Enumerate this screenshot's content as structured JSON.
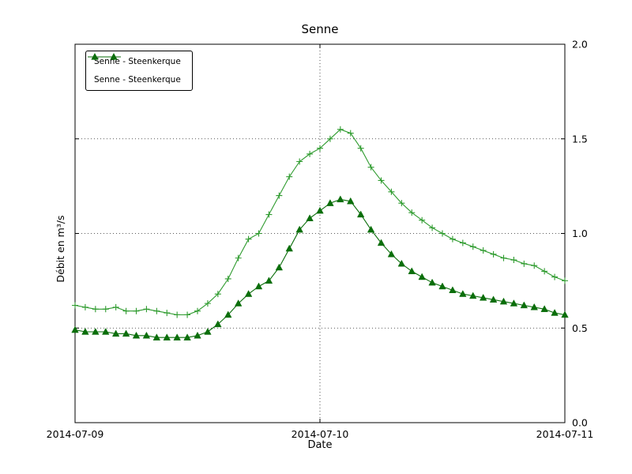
{
  "figure": {
    "background": "#ffffff"
  },
  "chart_data": {
    "type": "line",
    "title": "Senne",
    "xlabel": "Date",
    "ylabel": "Débit en m³/s",
    "grid": "dotted",
    "legend_position": "upper-left",
    "ylim": [
      0.0,
      2.0
    ],
    "y_ticks": [
      0.0,
      0.5,
      1.0,
      1.5,
      2.0
    ],
    "y_tick_labels": [
      "0.0",
      "0.5",
      "1.0",
      "1.5",
      "2.0"
    ],
    "x_range": [
      0,
      48
    ],
    "x_tick_hours": [
      0,
      24,
      48
    ],
    "x_ticks": [
      "2014-07-09",
      "2014-07-10",
      "2014-07-11"
    ],
    "x_hours": [
      0,
      1,
      2,
      3,
      4,
      5,
      6,
      7,
      8,
      9,
      10,
      11,
      12,
      13,
      14,
      15,
      16,
      17,
      18,
      19,
      20,
      21,
      22,
      23,
      24,
      25,
      26,
      27,
      28,
      29,
      30,
      31,
      32,
      33,
      34,
      35,
      36,
      37,
      38,
      39,
      40,
      41,
      42,
      43,
      44,
      45,
      46,
      47,
      48
    ],
    "series": [
      {
        "name": "Senne - Steenkerque",
        "marker": "plus",
        "color": "#2e9b2e",
        "values": [
          0.62,
          0.61,
          0.6,
          0.6,
          0.61,
          0.59,
          0.59,
          0.6,
          0.59,
          0.58,
          0.57,
          0.57,
          0.59,
          0.63,
          0.68,
          0.76,
          0.87,
          0.97,
          1.0,
          1.1,
          1.2,
          1.3,
          1.38,
          1.42,
          1.45,
          1.5,
          1.55,
          1.53,
          1.45,
          1.35,
          1.28,
          1.22,
          1.16,
          1.11,
          1.07,
          1.03,
          1.0,
          0.97,
          0.95,
          0.93,
          0.91,
          0.89,
          0.87,
          0.86,
          0.84,
          0.83,
          0.8,
          0.77,
          0.75
        ]
      },
      {
        "name": "Senne - Steenkerque",
        "marker": "triangle",
        "color": "#0b6e0b",
        "values": [
          0.49,
          0.48,
          0.48,
          0.48,
          0.47,
          0.47,
          0.46,
          0.46,
          0.45,
          0.45,
          0.45,
          0.45,
          0.46,
          0.48,
          0.52,
          0.57,
          0.63,
          0.68,
          0.72,
          0.75,
          0.82,
          0.92,
          1.02,
          1.08,
          1.12,
          1.16,
          1.18,
          1.17,
          1.1,
          1.02,
          0.95,
          0.89,
          0.84,
          0.8,
          0.77,
          0.74,
          0.72,
          0.7,
          0.68,
          0.67,
          0.66,
          0.65,
          0.64,
          0.63,
          0.62,
          0.61,
          0.6,
          0.58,
          0.57
        ]
      }
    ]
  }
}
